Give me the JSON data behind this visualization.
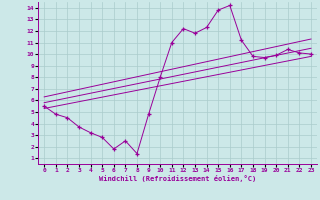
{
  "bg_color": "#cce8e8",
  "line_color": "#990099",
  "grid_color": "#aacccc",
  "xlabel": "Windchill (Refroidissement éolien,°C)",
  "xlim": [
    -0.5,
    23.5
  ],
  "ylim": [
    0.5,
    14.5
  ],
  "xticks": [
    0,
    1,
    2,
    3,
    4,
    5,
    6,
    7,
    8,
    9,
    10,
    11,
    12,
    13,
    14,
    15,
    16,
    17,
    18,
    19,
    20,
    21,
    22,
    23
  ],
  "yticks": [
    1,
    2,
    3,
    4,
    5,
    6,
    7,
    8,
    9,
    10,
    11,
    12,
    13,
    14
  ],
  "jagged_x": [
    0,
    1,
    2,
    3,
    4,
    5,
    6,
    7,
    8,
    9,
    10,
    11,
    12,
    13,
    14,
    15,
    16,
    17,
    18,
    19,
    20,
    21,
    22,
    23
  ],
  "jagged_y": [
    5.5,
    4.8,
    4.5,
    3.7,
    3.2,
    2.8,
    1.8,
    2.5,
    1.4,
    4.8,
    8.0,
    11.0,
    12.2,
    11.8,
    12.3,
    13.8,
    14.2,
    11.2,
    9.8,
    9.7,
    9.9,
    10.4,
    10.1,
    10.0
  ],
  "line1_x": [
    0,
    23
  ],
  "line1_y": [
    5.8,
    10.5
  ],
  "line2_x": [
    0,
    23
  ],
  "line2_y": [
    5.3,
    9.8
  ],
  "line3_x": [
    0,
    23
  ],
  "line3_y": [
    6.3,
    11.3
  ]
}
